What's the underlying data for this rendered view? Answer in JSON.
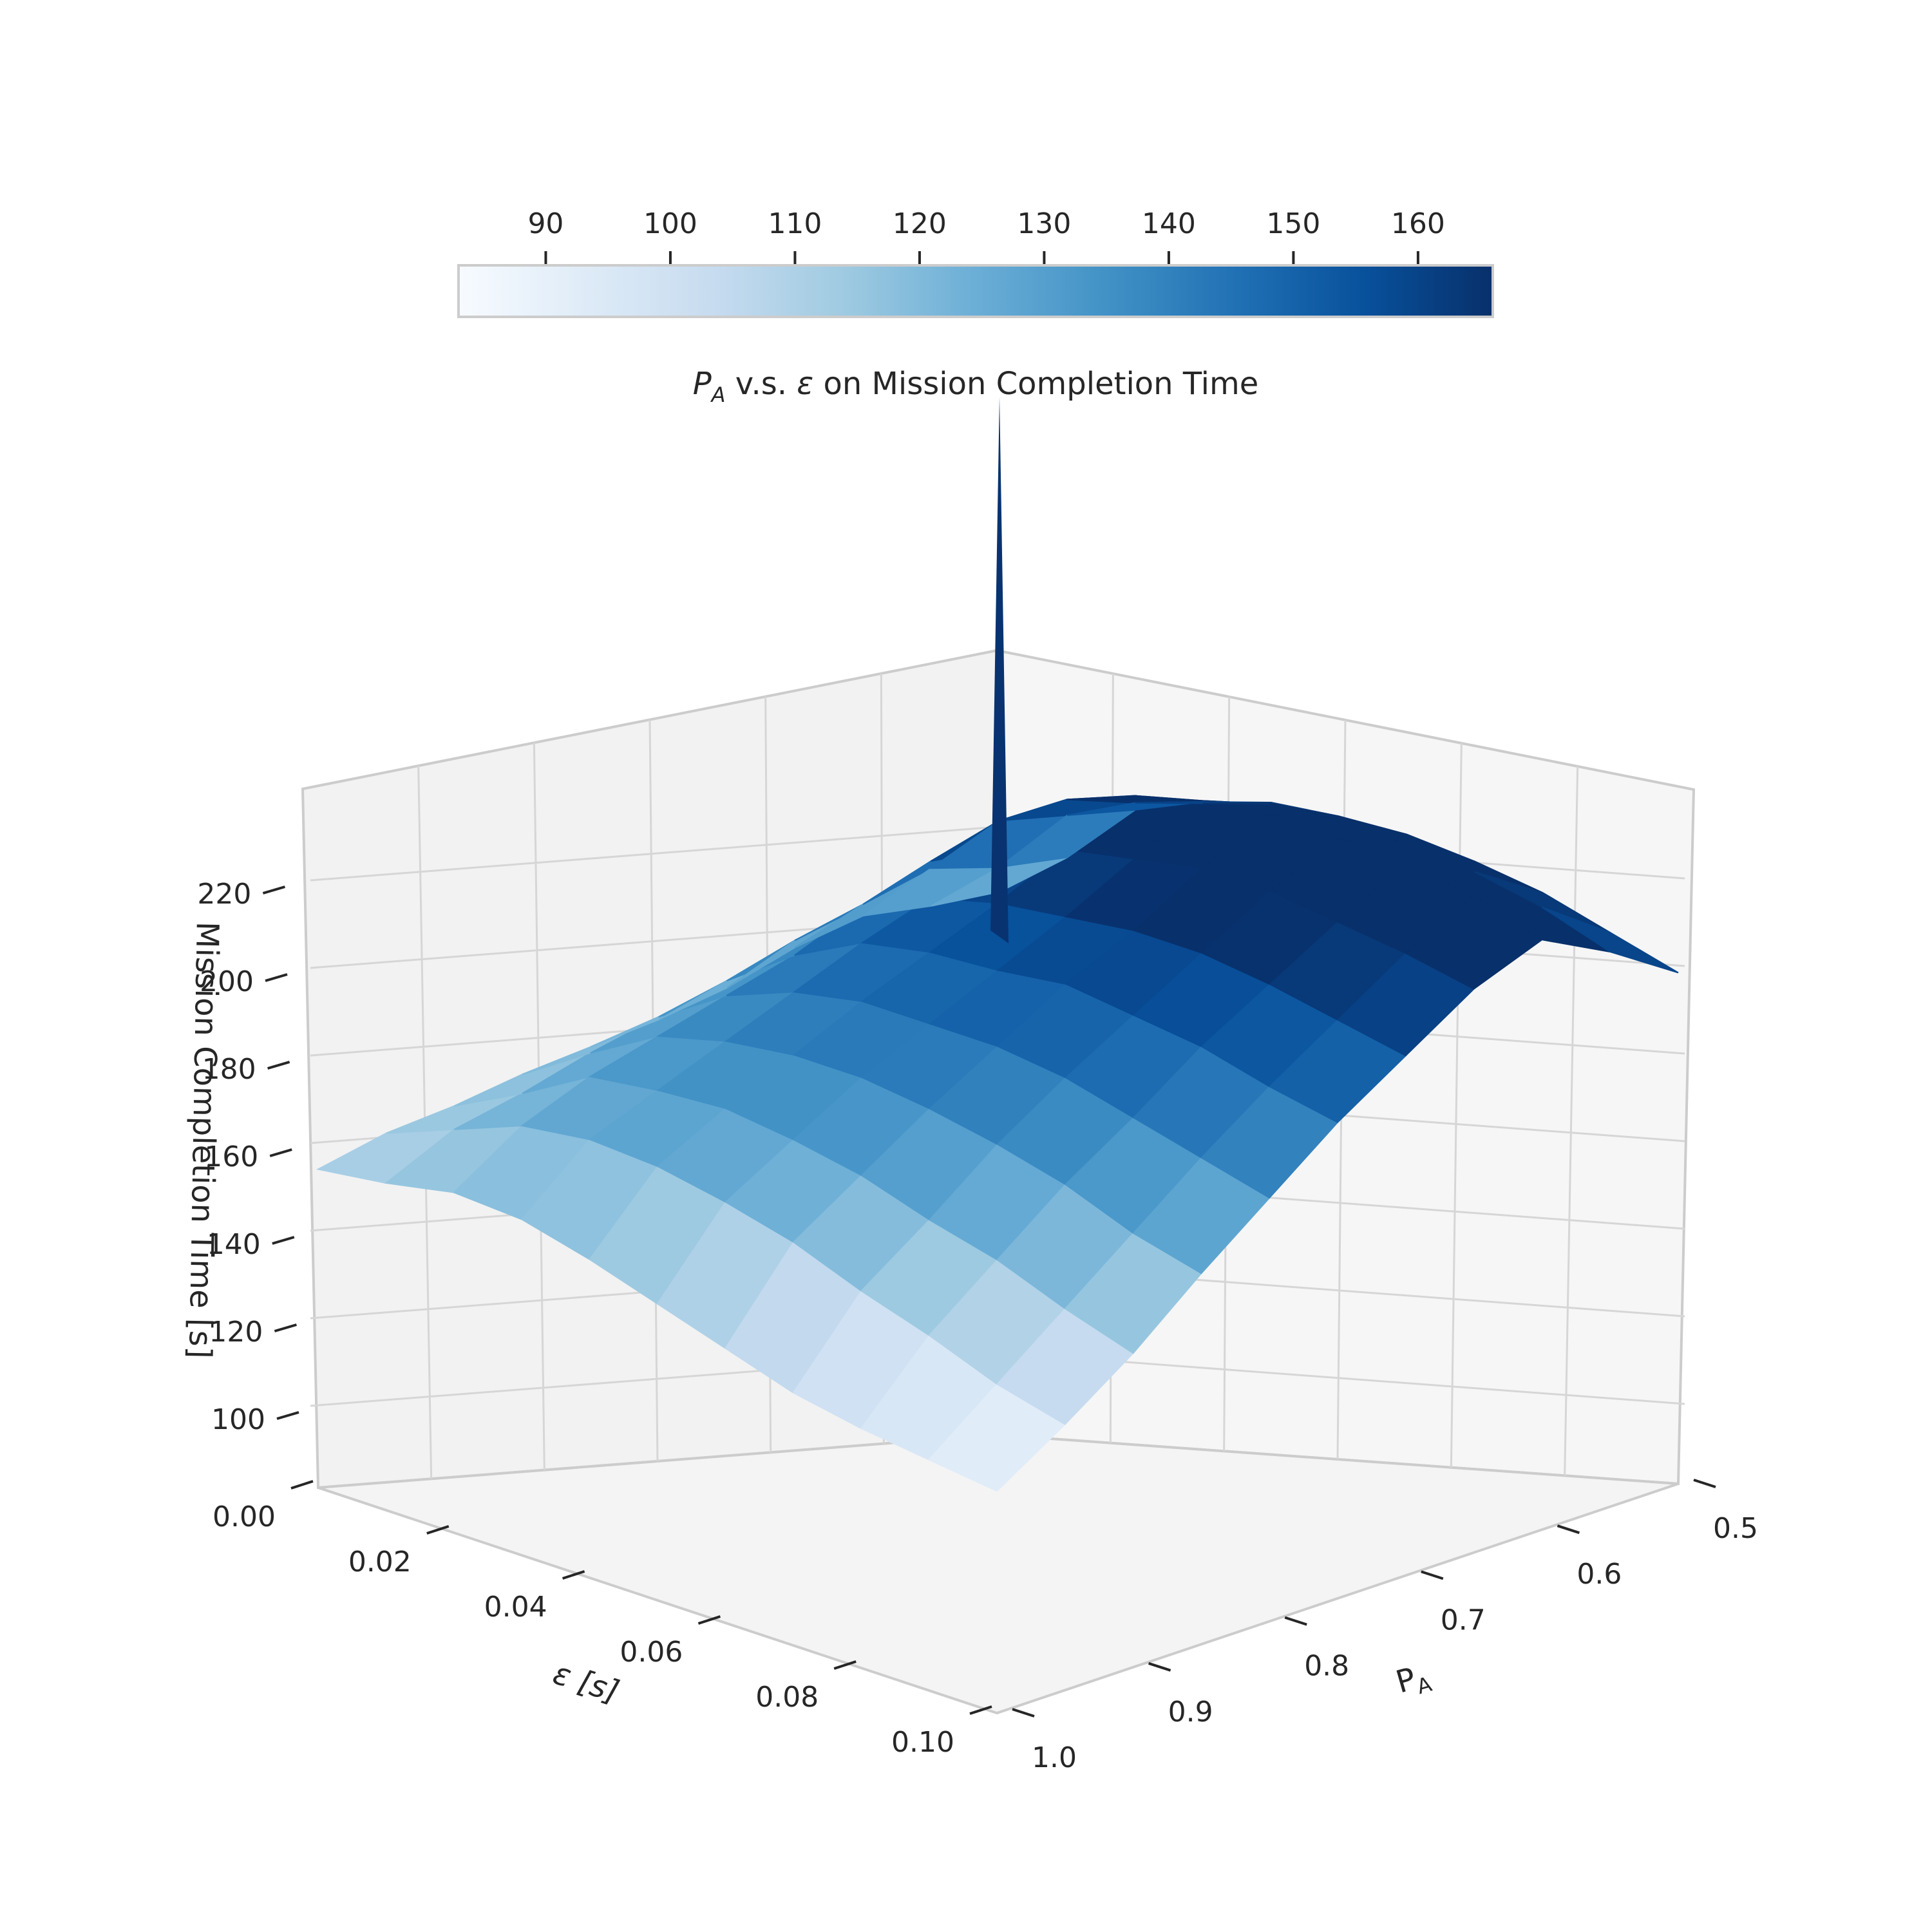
{
  "chart_data": {
    "type": "surface",
    "colormap": "Blues",
    "colorbar": {
      "title_prefix": "P",
      "title_sub": "A",
      "title_mid": " v.s. ",
      "title_eps": "ε",
      "title_suffix": " on Mission Completion Time",
      "ticks": [
        90,
        100,
        110,
        120,
        130,
        140,
        150,
        160
      ],
      "range": [
        83,
        166
      ]
    },
    "axes": {
      "x": {
        "label": "ε [s]",
        "ticks": [
          0.0,
          0.02,
          0.04,
          0.06,
          0.08,
          0.1
        ],
        "tick_labels": [
          "0.00",
          "0.02",
          "0.04",
          "0.06",
          "0.08",
          "0.10"
        ],
        "range": [
          0.0,
          0.1
        ]
      },
      "y": {
        "label_main": "P",
        "label_sub": "A",
        "ticks": [
          0.5,
          0.6,
          0.7,
          0.8,
          0.9,
          1.0
        ],
        "tick_labels": [
          "0.5",
          "0.6",
          "0.7",
          "0.8",
          "0.9",
          "1.0"
        ],
        "range": [
          0.5,
          1.0
        ]
      },
      "z": {
        "label": "Mission Completion Time [s]",
        "ticks": [
          100,
          120,
          140,
          160,
          180,
          200,
          220
        ],
        "tick_labels": [
          "100",
          "120",
          "140",
          "160",
          "180",
          "200",
          "220"
        ],
        "range": [
          80,
          230
        ]
      }
    },
    "grid": true,
    "eps_values": [
      0.0,
      0.01,
      0.02,
      0.03,
      0.04,
      0.05,
      0.06,
      0.07,
      0.08,
      0.09,
      0.1
    ],
    "pa_values": [
      0.5,
      0.55,
      0.6,
      0.65,
      0.7,
      0.75,
      0.8,
      0.85,
      0.9,
      0.95,
      1.0
    ],
    "z_values": [
      [
        119,
        121,
        124,
        122,
        118,
        116,
        115,
        114,
        112,
        111,
        108
      ],
      [
        132,
        135,
        140,
        137,
        134,
        130,
        127,
        124,
        120,
        117,
        110
      ],
      [
        148,
        152,
        156,
        152,
        147,
        141,
        137,
        133,
        129,
        123,
        113
      ],
      [
        155,
        160,
        166,
        160,
        154,
        149,
        143,
        137,
        131,
        125,
        112
      ],
      [
        160,
        165,
        172,
        165,
        158,
        152,
        146,
        139,
        132,
        124,
        108
      ],
      [
        162,
        170,
        176,
        168,
        160,
        153,
        146,
        139,
        130,
        121,
        103
      ],
      [
        163,
        172,
        178,
        171,
        162,
        155,
        146,
        137,
        127,
        117,
        98
      ],
      [
        162,
        171,
        178,
        171,
        162,
        153,
        144,
        134,
        122,
        111,
        93
      ],
      [
        160,
        170,
        177,
        169,
        160,
        151,
        140,
        130,
        118,
        106,
        90
      ],
      [
        156,
        167,
        175,
        167,
        157,
        147,
        136,
        124,
        112,
        100,
        88
      ],
      [
        152,
        162,
        170,
        164,
        154,
        144,
        132,
        120,
        107,
        96,
        86
      ]
    ],
    "spike": {
      "eps": 0.0,
      "pa": 0.5,
      "value": 232
    }
  }
}
